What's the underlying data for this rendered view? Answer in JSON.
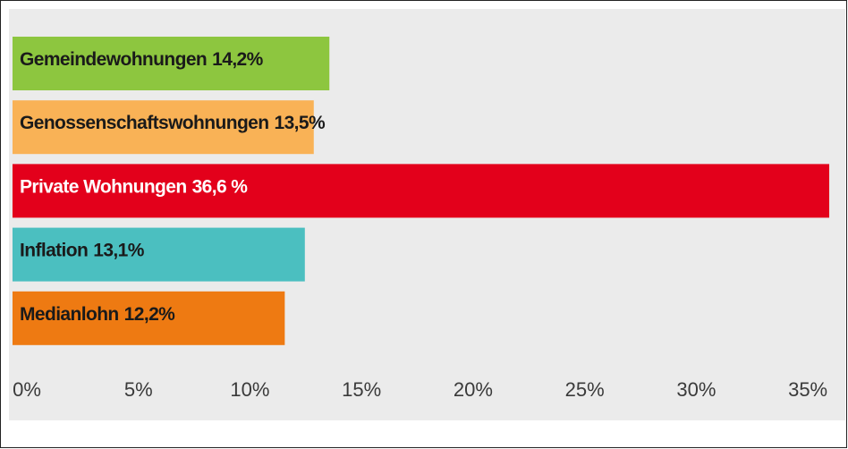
{
  "chart_data": {
    "type": "bar",
    "orientation": "horizontal",
    "categories": [
      "Gemeindewohnungen",
      "Genossenschaftswohnungen",
      "Private Wohnungen",
      "Inflation",
      "Medianlohn"
    ],
    "values": [
      14.2,
      13.5,
      36.6,
      13.1,
      12.2
    ],
    "value_labels": [
      "14,2%",
      "13,5%",
      "36,6 %",
      "13,1%",
      "12,2%"
    ],
    "colors": [
      "#8dc63f",
      "#f9b256",
      "#e3001b",
      "#4bbfc0",
      "#ee7a12"
    ],
    "label_colors": [
      "#1a1a1a",
      "#1a1a1a",
      "#ffffff",
      "#1a1a1a",
      "#1a1a1a"
    ],
    "xlim": [
      0,
      37
    ],
    "xticks": [
      {
        "value": 0,
        "label": "0%"
      },
      {
        "value": 5,
        "label": "5%"
      },
      {
        "value": 10,
        "label": "10%"
      },
      {
        "value": 15,
        "label": "15%"
      },
      {
        "value": 20,
        "label": "20%"
      },
      {
        "value": 25,
        "label": "25%"
      },
      {
        "value": 30,
        "label": "30%"
      },
      {
        "value": 35,
        "label": "35%"
      }
    ],
    "grid": false
  }
}
